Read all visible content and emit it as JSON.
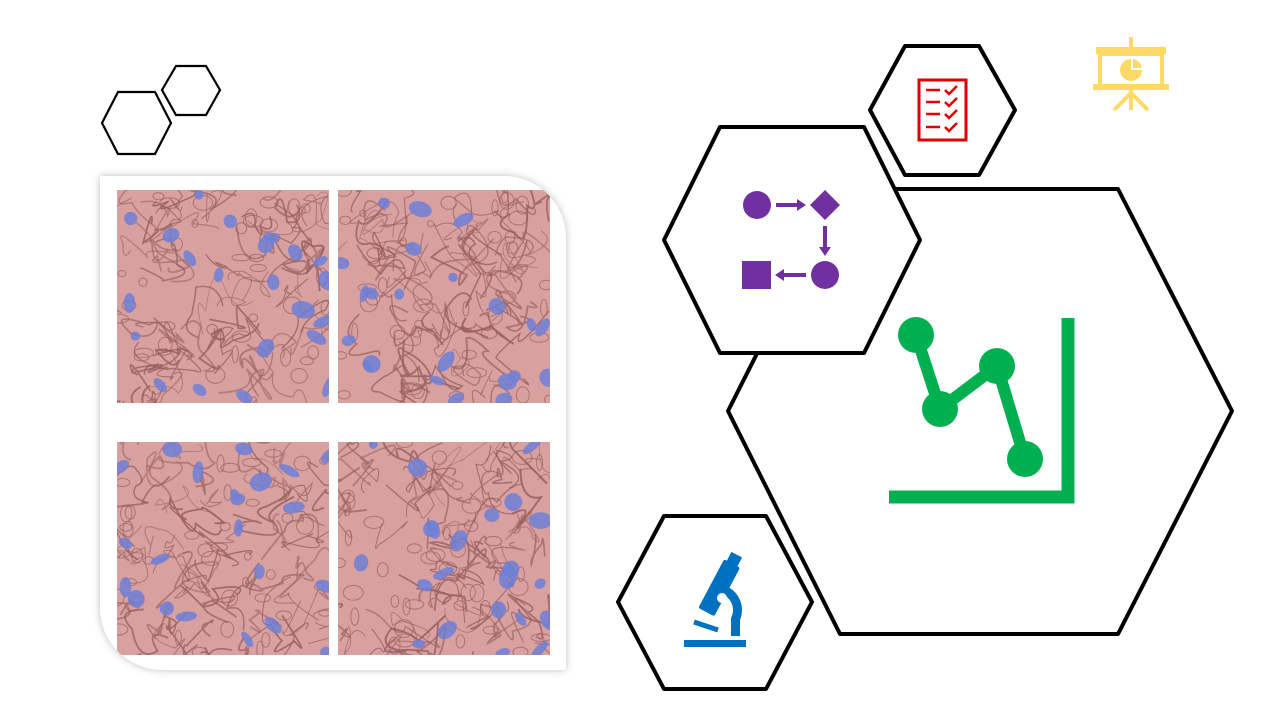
{
  "colors": {
    "hex_stroke": "#000000",
    "chart_icon": "#00b050",
    "workflow_icon": "#7030a0",
    "checklist_icon": "#e00000",
    "microscope_icon": "#0070c0",
    "presentation_icon": "#ffd966",
    "tissue_base": "#d9a0a0",
    "tissue_membrane": "#9a6060",
    "nucleus": "#6d7fd6"
  },
  "icons": {
    "chart": "line-chart-icon",
    "workflow": "workflow-icon",
    "checklist": "checklist-icon",
    "microscope": "microscope-icon",
    "presentation": "presentation-icon"
  },
  "micrographs": {
    "tiles": [
      {
        "name": "tile-top-left",
        "seed": 3
      },
      {
        "name": "tile-top-right",
        "seed": 11
      },
      {
        "name": "tile-bottom-left",
        "seed": 23
      },
      {
        "name": "tile-bottom-right",
        "seed": 37
      }
    ]
  }
}
